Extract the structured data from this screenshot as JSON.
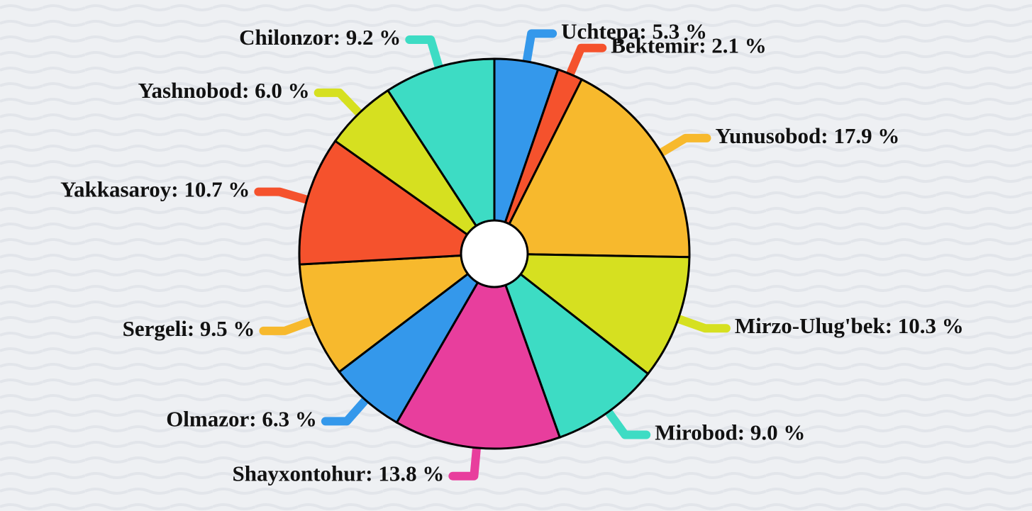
{
  "chart_data": {
    "type": "pie",
    "categories": [
      "Uchtepa",
      "Bektemir",
      "Yunusobod",
      "Mirzo-Ulug'bek",
      "Mirobod",
      "Shayxontohur",
      "Olmazor",
      "Sergeli",
      "Yakkasaroy",
      "Yashnobod",
      "Chilonzor"
    ],
    "values": [
      5.3,
      2.1,
      17.9,
      10.3,
      9.0,
      13.8,
      6.3,
      9.5,
      10.7,
      6.0,
      9.2
    ],
    "value_labels": [
      "5.3 %",
      "2.1 %",
      "17.9 %",
      "10.3 %",
      "9.0 %",
      "13.8 %",
      "6.3 %",
      "9.5 %",
      "10.7 %",
      "6.0 %",
      "9.2 %"
    ],
    "colors": [
      "#3498eb",
      "#f5522d",
      "#f7b92d",
      "#d6e020",
      "#3ddcc4",
      "#e83e9d",
      "#3498eb",
      "#f7b92d",
      "#f5522d",
      "#d6e020",
      "#3ddcc4"
    ]
  }
}
